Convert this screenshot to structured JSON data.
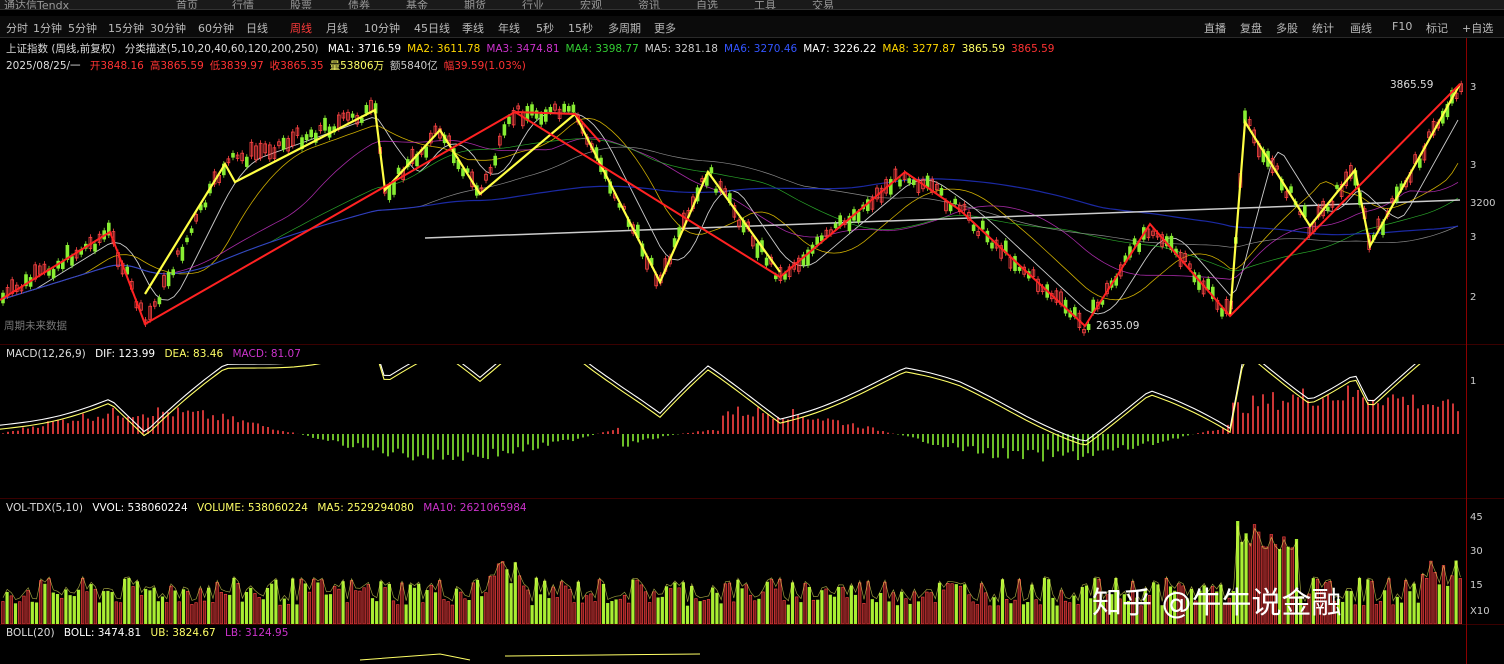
{
  "topbar": [
    "通达信Tendx",
    "首页",
    "行情",
    "股票",
    "债券",
    "基金",
    "期货",
    "行业",
    "宏观",
    "资讯",
    "自选",
    "工具",
    "交易"
  ],
  "toolbar": {
    "left_items": [
      "分时",
      "1分钟",
      "5分钟",
      "15分钟",
      "30分钟",
      "60分钟",
      "日线",
      "周线",
      "月线",
      "10分钟",
      "45日线",
      "季线",
      "年线",
      "5秒",
      "15秒",
      "多周期",
      "更多"
    ],
    "active": "周线",
    "right_items": [
      "直播",
      "复盘",
      "多股",
      "统计",
      "画线",
      "F10",
      "标记",
      "+自选"
    ]
  },
  "main": {
    "title": "上证指数 (周线,前复权)",
    "indicator": "分类描述(5,10,20,40,60,120,200,250)",
    "ma": [
      {
        "label": "MA1: 3716.59",
        "color": "#ffffff"
      },
      {
        "label": "MA2: 3611.78",
        "color": "#ffd700"
      },
      {
        "label": "MA3: 3474.81",
        "color": "#cc33cc"
      },
      {
        "label": "MA4: 3398.77",
        "color": "#33cc33"
      },
      {
        "label": "MA5: 3281.18",
        "color": "#cccccc"
      },
      {
        "label": "MA6: 3270.46",
        "color": "#3355ff"
      },
      {
        "label": "MA7: 3226.22",
        "color": "#ffffff"
      },
      {
        "label": "MA8: 3277.87",
        "color": "#ffd700"
      },
      {
        "label": "3865.59",
        "color": "#ffff66"
      },
      {
        "label": "3865.59",
        "color": "#ff3333"
      }
    ],
    "date_line": "2025/08/25/一",
    "ohlc": [
      {
        "label": "开3848.16",
        "color": "#ff3333"
      },
      {
        "label": "高3865.59",
        "color": "#ff3333"
      },
      {
        "label": "低3839.97",
        "color": "#ff3333"
      },
      {
        "label": "收3865.35",
        "color": "#ff3333"
      },
      {
        "label": "量53806万",
        "color": "#ffff66"
      },
      {
        "label": "额5840亿",
        "color": "#cccccc"
      },
      {
        "label": "幅39.59(1.03%)",
        "color": "#ff3333"
      }
    ],
    "high_label": "3865.59",
    "low_label": "2635.09",
    "bottom_note": "周期未来数据"
  },
  "macd": {
    "title": "MACD(12,26,9)",
    "dif": "DIF: 123.99",
    "dea": "DEA: 83.46",
    "macd": "MACD: 81.07"
  },
  "vol": {
    "title": "VOL-TDX(5,10)",
    "vvol": "VVOL: 538060224",
    "volume": "VOLUME: 538060224",
    "ma5": "MA5: 2529294080",
    "ma10": "MA10: 2621065984"
  },
  "boll": {
    "title": "BOLL(20)",
    "boll": "BOLL: 3474.81",
    "ub": "UB: 3824.67",
    "lb": "LB: 3124.95"
  },
  "axis": {
    "main": [
      "3",
      "3",
      "3200",
      "3",
      "2"
    ],
    "macd": [
      "1"
    ],
    "vol": [
      "45",
      "30",
      "15",
      "X10"
    ]
  },
  "watermark": "知乎 @牛牛说金融"
}
